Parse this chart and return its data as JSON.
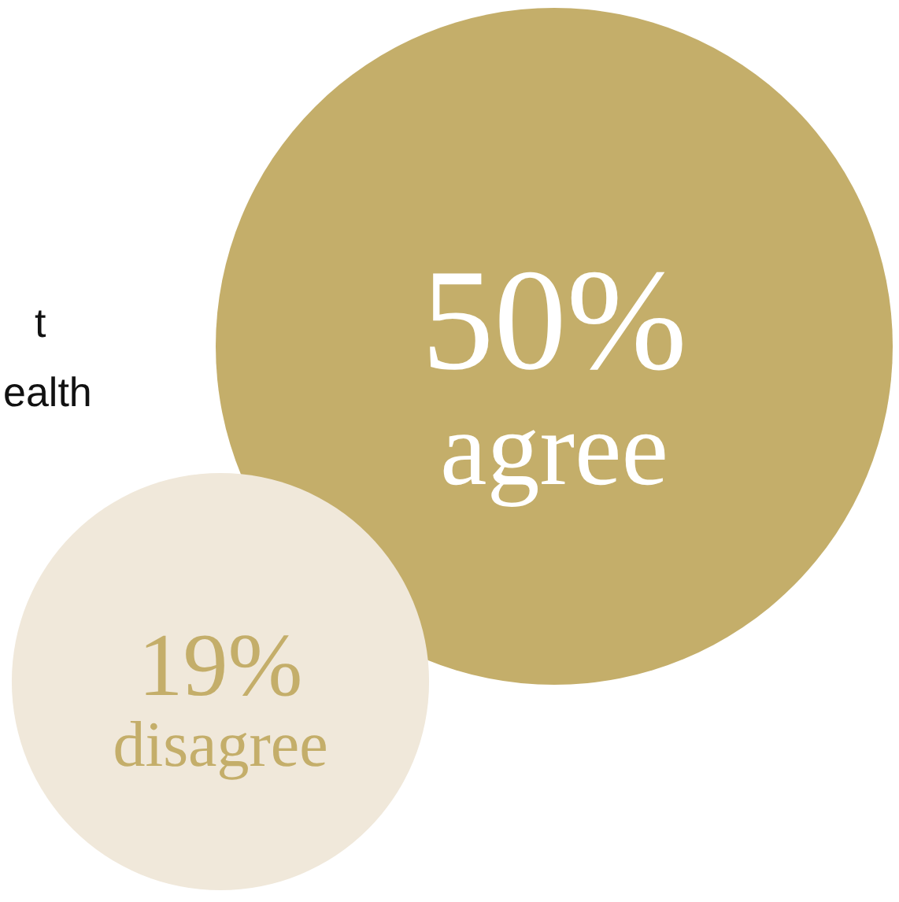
{
  "chart_data": {
    "type": "other",
    "categories": [
      "agree",
      "disagree"
    ],
    "values": [
      50,
      19
    ],
    "value_labels": [
      "50%",
      "19%"
    ],
    "colors": [
      "#c4ae6a",
      "#f0e8da"
    ],
    "annotations": [
      "t",
      "ealth"
    ]
  }
}
